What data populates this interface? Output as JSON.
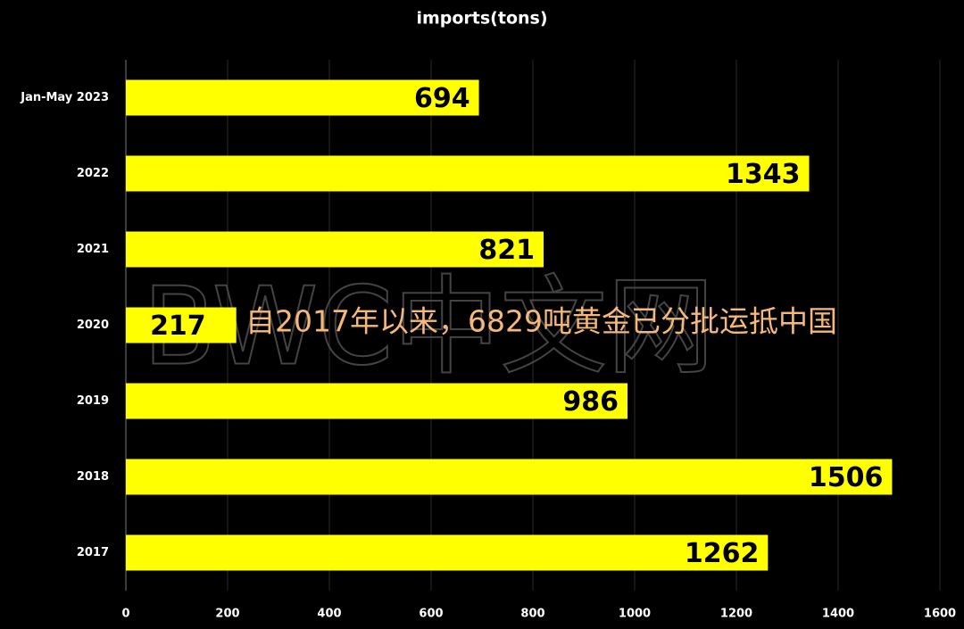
{
  "chart_data": {
    "type": "barh",
    "title": "imports(tons)",
    "categories": [
      "Jan-May 2023",
      "2022",
      "2021",
      "2020",
      "2019",
      "2018",
      "2017"
    ],
    "values": [
      694,
      1343,
      821,
      217,
      986,
      1506,
      1262
    ],
    "color": "#ffff00",
    "xlim": [
      0,
      1600
    ],
    "xticks": [
      0,
      200,
      400,
      600,
      800,
      1000,
      1200,
      1400,
      1600
    ],
    "grid": true,
    "watermark": "BWC中文网",
    "annotation": "自2017年以来，6829吨黄金已分批运抵中国"
  }
}
